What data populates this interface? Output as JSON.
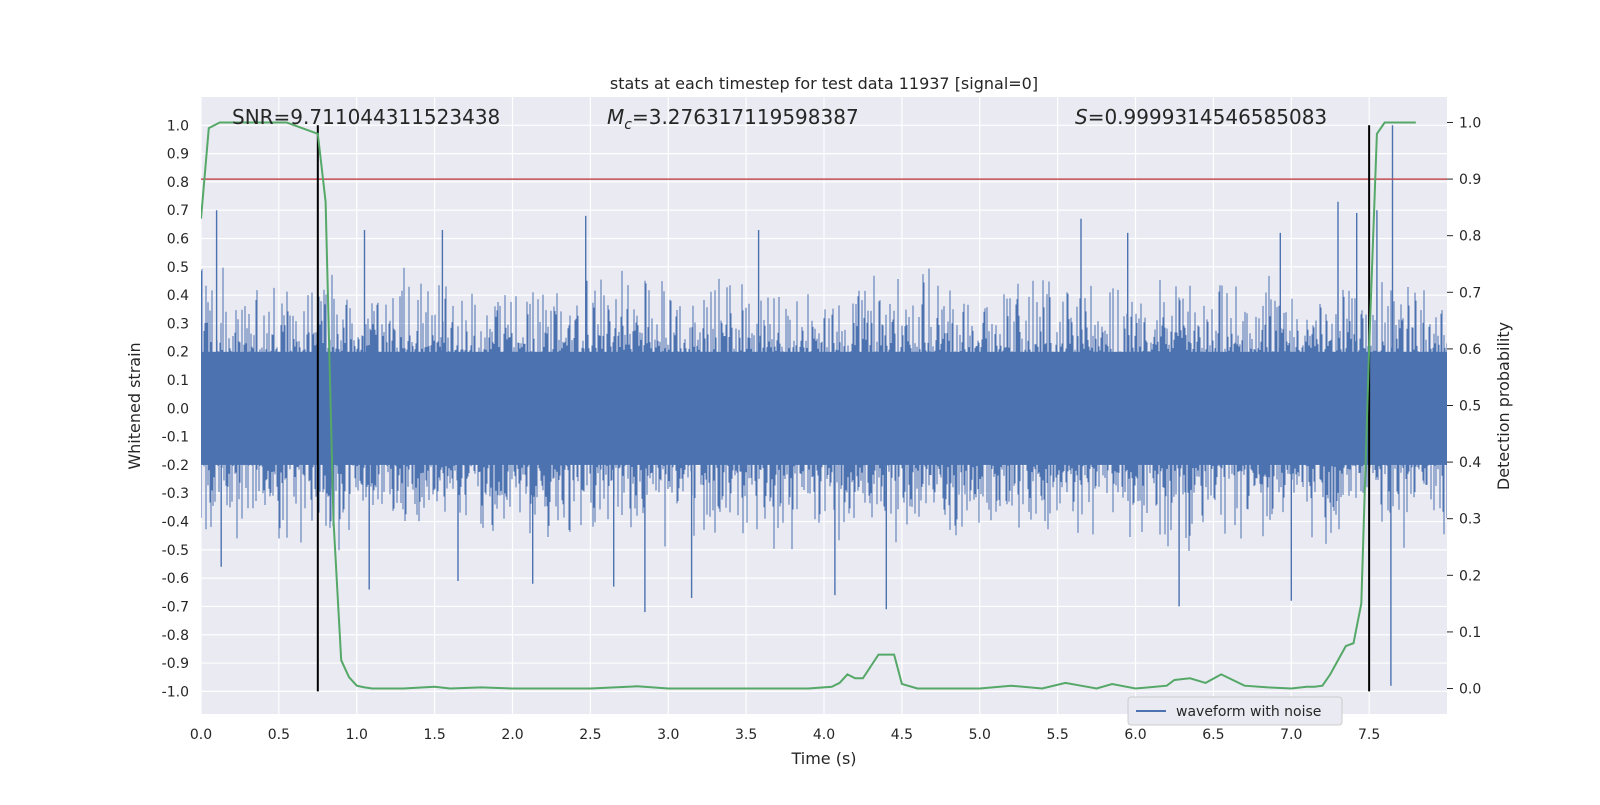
{
  "chart_data": {
    "type": "line",
    "title": "stats at each timestep for test data 11937 [signal=0]",
    "xlabel": "Time (s)",
    "ylabel_left": "Whitened strain",
    "ylabel_right": "Detection probability",
    "xlim": [
      0.0,
      8.0
    ],
    "ylim_left": [
      -1.08,
      1.1
    ],
    "ylim_right": [
      -0.045,
      1.045
    ],
    "x_ticks": [
      "0.0",
      "0.5",
      "1.0",
      "1.5",
      "2.0",
      "2.5",
      "3.0",
      "3.5",
      "4.0",
      "4.5",
      "5.0",
      "5.5",
      "6.0",
      "6.5",
      "7.0",
      "7.5"
    ],
    "y_ticks_left": [
      "-1.0",
      "-0.9",
      "-0.8",
      "-0.7",
      "-0.6",
      "-0.5",
      "-0.4",
      "-0.3",
      "-0.2",
      "-0.1",
      "0.0",
      "0.1",
      "0.2",
      "0.3",
      "0.4",
      "0.5",
      "0.6",
      "0.7",
      "0.8",
      "0.9",
      "1.0"
    ],
    "y_ticks_right": [
      "0.0",
      "0.1",
      "0.2",
      "0.3",
      "0.4",
      "0.5",
      "0.6",
      "0.7",
      "0.8",
      "0.9",
      "1.0"
    ],
    "grid": true,
    "legend": {
      "placement": "lower-right",
      "entries": [
        "waveform with noise"
      ]
    },
    "annotations": {
      "snr": "SNR=9.711044311523438",
      "mc_label": "M",
      "mc_sub": "c",
      "mc_value": "=3.276317119598387",
      "s_label": "S",
      "s_value": "=0.9999314546585083"
    },
    "threshold": {
      "axis": "right",
      "value": 0.9,
      "color": "#c44e52"
    },
    "vertical_markers": {
      "x": [
        0.75,
        7.5
      ],
      "ymin": -1.0,
      "ymax": 1.0,
      "color": "#000000"
    },
    "series": [
      {
        "name": "waveform with noise",
        "axis": "left",
        "color": "#4c72b0",
        "kind": "noise-envelope",
        "core_amplitude": 0.2,
        "typical_peak": 0.45,
        "peaks": [
          {
            "x": 0.1,
            "y": 0.7
          },
          {
            "x": 0.13,
            "y": -0.56
          },
          {
            "x": 0.75,
            "y": 0.46
          },
          {
            "x": 1.05,
            "y": 0.63
          },
          {
            "x": 1.08,
            "y": -0.64
          },
          {
            "x": 1.55,
            "y": 0.63
          },
          {
            "x": 1.65,
            "y": -0.61
          },
          {
            "x": 2.13,
            "y": -0.62
          },
          {
            "x": 2.47,
            "y": 0.68
          },
          {
            "x": 2.65,
            "y": -0.63
          },
          {
            "x": 2.85,
            "y": -0.72
          },
          {
            "x": 3.15,
            "y": -0.67
          },
          {
            "x": 3.58,
            "y": 0.63
          },
          {
            "x": 4.07,
            "y": -0.66
          },
          {
            "x": 4.4,
            "y": -0.71
          },
          {
            "x": 5.65,
            "y": 0.67
          },
          {
            "x": 5.95,
            "y": 0.62
          },
          {
            "x": 6.28,
            "y": -0.7
          },
          {
            "x": 6.93,
            "y": 0.62
          },
          {
            "x": 7.0,
            "y": -0.68
          },
          {
            "x": 7.3,
            "y": 0.73
          },
          {
            "x": 7.42,
            "y": 0.69
          },
          {
            "x": 7.55,
            "y": 0.7
          },
          {
            "x": 7.65,
            "y": 1.0
          },
          {
            "x": 7.64,
            "y": -0.98
          }
        ]
      },
      {
        "name": "detection probability",
        "axis": "right",
        "color": "#55a868",
        "x": [
          0.0,
          0.05,
          0.12,
          0.55,
          0.75,
          0.8,
          0.85,
          0.9,
          0.95,
          1.0,
          1.05,
          1.1,
          1.2,
          1.3,
          1.5,
          1.6,
          1.8,
          2.0,
          2.5,
          2.8,
          3.0,
          3.5,
          3.9,
          4.05,
          4.1,
          4.15,
          4.2,
          4.25,
          4.35,
          4.45,
          4.5,
          4.6,
          4.8,
          5.0,
          5.2,
          5.4,
          5.55,
          5.65,
          5.75,
          5.85,
          6.0,
          6.2,
          6.25,
          6.35,
          6.45,
          6.55,
          6.7,
          6.85,
          7.0,
          7.1,
          7.15,
          7.2,
          7.25,
          7.35,
          7.4,
          7.45,
          7.5,
          7.55,
          7.6,
          7.65,
          7.75,
          7.8
        ],
        "y": [
          0.83,
          0.99,
          1.0,
          1.0,
          0.98,
          0.86,
          0.3,
          0.05,
          0.02,
          0.005,
          0.002,
          0.0,
          0.0,
          0.0,
          0.003,
          0.0,
          0.002,
          0.0,
          0.0,
          0.004,
          0.0,
          0.0,
          0.0,
          0.003,
          0.01,
          0.025,
          0.018,
          0.018,
          0.06,
          0.06,
          0.008,
          0.0,
          0.0,
          0.0,
          0.005,
          0.0,
          0.01,
          0.005,
          0.0,
          0.008,
          0.0,
          0.005,
          0.015,
          0.018,
          0.01,
          0.025,
          0.005,
          0.002,
          0.0,
          0.003,
          0.003,
          0.005,
          0.025,
          0.075,
          0.08,
          0.15,
          0.6,
          0.98,
          1.0,
          1.0,
          1.0,
          1.0
        ]
      }
    ]
  }
}
